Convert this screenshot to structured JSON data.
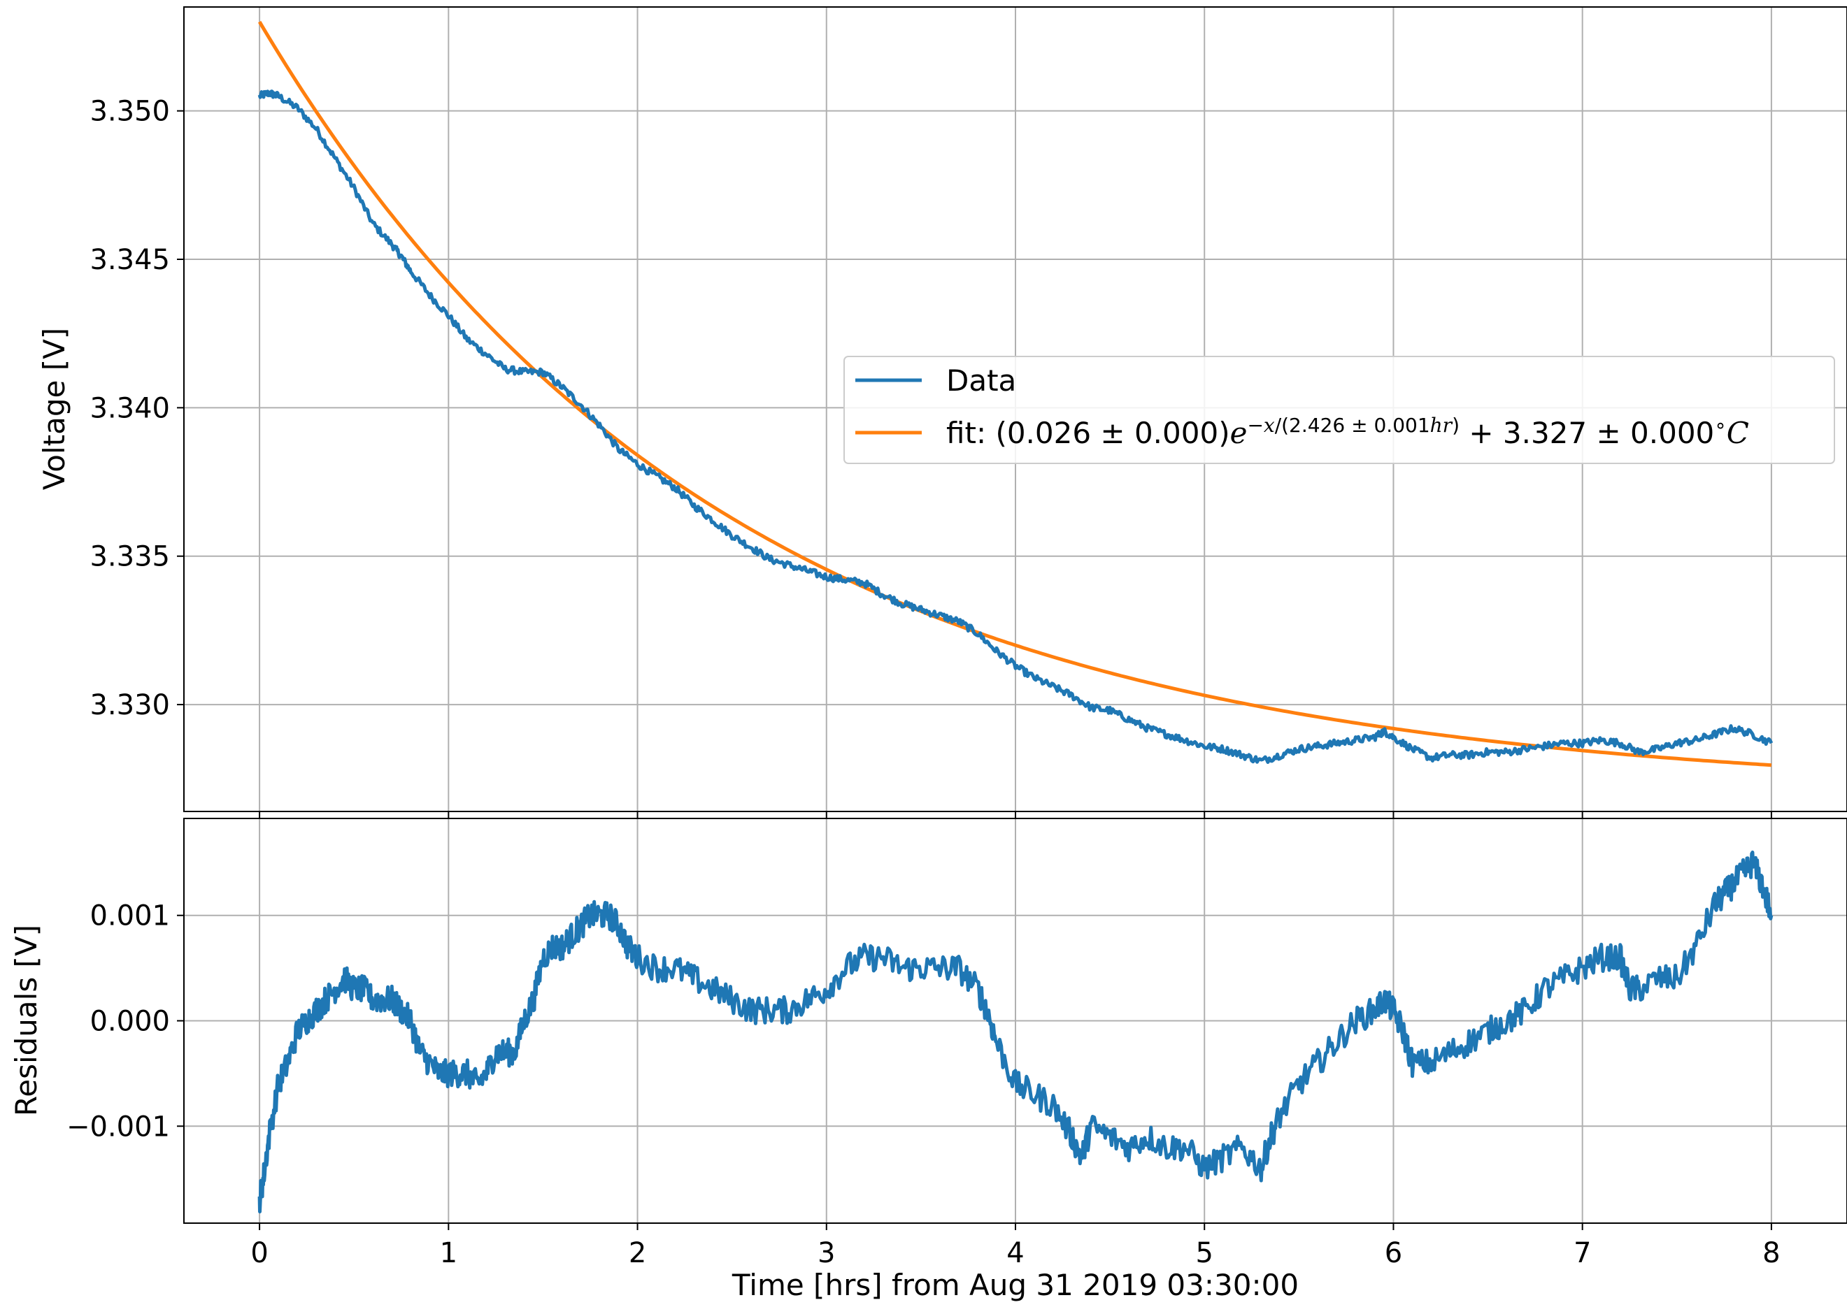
{
  "chart_data": [
    {
      "type": "line",
      "panel": "top",
      "ylabel": "Voltage [V]",
      "xlim": [
        -0.4,
        8.4
      ],
      "ylim": [
        3.3264,
        3.3535
      ],
      "x_ticks": [
        0,
        1,
        2,
        3,
        4,
        5,
        6,
        7,
        8
      ],
      "y_ticks": [
        3.33,
        3.335,
        3.34,
        3.345,
        3.35
      ],
      "y_tick_labels": [
        "3.330",
        "3.335",
        "3.340",
        "3.345",
        "3.350"
      ],
      "grid": true,
      "legend_position": "center-right",
      "series": [
        {
          "name": "Data",
          "color": "#1f77b4",
          "x": [
            0,
            0.05,
            0.1,
            0.2,
            0.3,
            0.4,
            0.5,
            0.6,
            0.7,
            0.75,
            0.8,
            0.9,
            1.0,
            1.1,
            1.2,
            1.3,
            1.4,
            1.5,
            1.6,
            1.7,
            1.8,
            1.9,
            2.0,
            2.1,
            2.2,
            2.3,
            2.4,
            2.5,
            2.6,
            2.7,
            2.8,
            2.9,
            3.0,
            3.1,
            3.2,
            3.3,
            3.4,
            3.5,
            3.6,
            3.7,
            3.8,
            3.9,
            4.0,
            4.1,
            4.2,
            4.3,
            4.4,
            4.5,
            4.6,
            4.7,
            4.8,
            4.9,
            5.0,
            5.1,
            5.2,
            5.3,
            5.4,
            5.5,
            5.6,
            5.7,
            5.8,
            5.9,
            5.95,
            6.0,
            6.1,
            6.2,
            6.3,
            6.4,
            6.5,
            6.6,
            6.7,
            6.8,
            6.9,
            7.0,
            7.1,
            7.2,
            7.3,
            7.4,
            7.5,
            7.6,
            7.7,
            7.8,
            7.9,
            8.0
          ],
          "y": [
            3.3505,
            3.3506,
            3.3505,
            3.3501,
            3.3494,
            3.3484,
            3.3474,
            3.3462,
            3.3455,
            3.3451,
            3.3446,
            3.3438,
            3.3431,
            3.3423,
            3.3418,
            3.3413,
            3.3412,
            3.3412,
            3.3407,
            3.3401,
            3.3394,
            3.3386,
            3.3381,
            3.3377,
            3.3373,
            3.3367,
            3.3362,
            3.3357,
            3.3353,
            3.3349,
            3.3347,
            3.3345,
            3.3343,
            3.3342,
            3.3341,
            3.3337,
            3.3334,
            3.3332,
            3.333,
            3.3328,
            3.3324,
            3.3318,
            3.3313,
            3.3309,
            3.3306,
            3.3303,
            3.3299,
            3.3298,
            3.3295,
            3.3292,
            3.329,
            3.3288,
            3.3286,
            3.3285,
            3.3283,
            3.3281,
            3.3283,
            3.3285,
            3.3286,
            3.3287,
            3.3288,
            3.3289,
            3.3291,
            3.3289,
            3.3285,
            3.3282,
            3.3283,
            3.3283,
            3.3284,
            3.3284,
            3.3285,
            3.3286,
            3.3287,
            3.3287,
            3.3288,
            3.3287,
            3.3284,
            3.3285,
            3.3287,
            3.3288,
            3.329,
            3.3292,
            3.329,
            3.3287
          ]
        },
        {
          "name": "fit",
          "color": "#ff7f0e",
          "amplitude": 0.026,
          "tau": 2.426,
          "offset": 3.327,
          "x_range": [
            0,
            8
          ]
        }
      ]
    },
    {
      "type": "line",
      "panel": "bottom",
      "xlabel": "Time [hrs] from Aug 31 2019 03:30:00",
      "ylabel": "Residuals [V]",
      "xlim": [
        -0.4,
        8.4
      ],
      "ylim": [
        -0.00192,
        0.00192
      ],
      "x_ticks": [
        0,
        1,
        2,
        3,
        4,
        5,
        6,
        7,
        8
      ],
      "x_tick_labels": [
        "0",
        "1",
        "2",
        "3",
        "4",
        "5",
        "6",
        "7",
        "8"
      ],
      "y_ticks": [
        -0.001,
        0.0,
        0.001
      ],
      "y_tick_labels": [
        "−0.001",
        "0.000",
        "0.001"
      ],
      "grid": true,
      "series": [
        {
          "name": "Data",
          "color": "#1f77b4",
          "x": [
            0,
            0.02,
            0.05,
            0.1,
            0.15,
            0.2,
            0.25,
            0.3,
            0.35,
            0.4,
            0.45,
            0.5,
            0.55,
            0.6,
            0.65,
            0.7,
            0.75,
            0.8,
            0.85,
            0.9,
            0.95,
            1.0,
            1.05,
            1.1,
            1.15,
            1.2,
            1.25,
            1.3,
            1.35,
            1.4,
            1.45,
            1.5,
            1.55,
            1.6,
            1.65,
            1.7,
            1.75,
            1.8,
            1.85,
            1.9,
            1.95,
            2.0,
            2.1,
            2.2,
            2.3,
            2.4,
            2.5,
            2.6,
            2.7,
            2.8,
            2.9,
            3.0,
            3.1,
            3.2,
            3.3,
            3.4,
            3.5,
            3.6,
            3.7,
            3.8,
            3.85,
            3.9,
            4.0,
            4.1,
            4.2,
            4.3,
            4.35,
            4.4,
            4.5,
            4.6,
            4.7,
            4.8,
            4.9,
            5.0,
            5.1,
            5.2,
            5.3,
            5.35,
            5.4,
            5.5,
            5.6,
            5.7,
            5.8,
            5.9,
            5.95,
            6.0,
            6.05,
            6.1,
            6.2,
            6.3,
            6.4,
            6.5,
            6.6,
            6.7,
            6.8,
            6.9,
            7.0,
            7.1,
            7.2,
            7.25,
            7.3,
            7.4,
            7.5,
            7.6,
            7.7,
            7.75,
            7.8,
            7.85,
            7.9,
            7.95,
            8.0
          ],
          "y": [
            -0.0017,
            -0.0015,
            -0.0011,
            -0.0006,
            -0.0004,
            -0.0001,
            0.0,
            0.0001,
            0.0002,
            0.0003,
            0.0004,
            0.0003,
            0.0003,
            0.0002,
            0.0002,
            0.0002,
            0.0001,
            0.0,
            -0.0003,
            -0.0004,
            -0.0005,
            -0.0005,
            -0.0005,
            -0.0005,
            -0.0006,
            -0.0005,
            -0.0003,
            -0.0003,
            -0.0003,
            0.0,
            0.0002,
            0.0006,
            0.0007,
            0.0007,
            0.0008,
            0.0009,
            0.001,
            0.001,
            0.001,
            0.0009,
            0.0007,
            0.0006,
            0.0005,
            0.0005,
            0.0004,
            0.0003,
            0.0002,
            0.0001,
            0.0001,
            0.0001,
            0.0002,
            0.0003,
            0.0005,
            0.0006,
            0.0006,
            0.0005,
            0.0005,
            0.0005,
            0.0005,
            0.0003,
            0.0001,
            -0.0002,
            -0.0006,
            -0.0007,
            -0.0008,
            -0.0011,
            -0.0013,
            -0.001,
            -0.0011,
            -0.0012,
            -0.0011,
            -0.0012,
            -0.0012,
            -0.0014,
            -0.0013,
            -0.0012,
            -0.0014,
            -0.0011,
            -0.0009,
            -0.0006,
            -0.0004,
            -0.0002,
            0.0,
            0.0001,
            0.0002,
            0.0001,
            -0.0001,
            -0.0004,
            -0.0004,
            -0.0003,
            -0.0002,
            -0.0001,
            0.0,
            0.0001,
            0.0003,
            0.0004,
            0.0005,
            0.0006,
            0.0006,
            0.0003,
            0.0003,
            0.0004,
            0.0004,
            0.0007,
            0.0011,
            0.0012,
            0.0013,
            0.0014,
            0.0015,
            0.0013,
            0.001
          ]
        }
      ]
    }
  ]
}
